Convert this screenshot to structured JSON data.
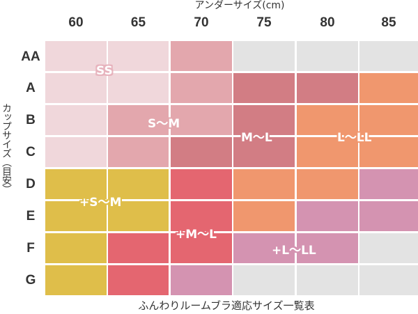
{
  "x_axis": {
    "title": "アンダーサイズ(cm)",
    "ticks": [
      "60",
      "65",
      "70",
      "75",
      "80",
      "85"
    ]
  },
  "y_axis": {
    "title": "カップサイズ（目安）",
    "ticks": [
      "AA",
      "A",
      "B",
      "C",
      "D",
      "E",
      "F",
      "G"
    ]
  },
  "caption": "ふんわりルームブラ適応サイズ一覧表",
  "colors": {
    "SS": "#f0d7db",
    "S~M": "#e3a7ad",
    "M~L": "#d27d84",
    "L~LL": "#f0976e",
    "+S~M": "#dfbe4a",
    "+M~L": "#e46670",
    "+L~LL": "#d493b1",
    "none": "#e3e3e3"
  },
  "bands": [
    {
      "id": "SS",
      "label": "SS"
    },
    {
      "id": "S~M",
      "label": "S〜M"
    },
    {
      "id": "M~L",
      "label": "M〜L"
    },
    {
      "id": "L~LL",
      "label": "L〜LL"
    },
    {
      "id": "+S~M",
      "label": "+S〜M"
    },
    {
      "id": "+M~L",
      "label": "+M〜L"
    },
    {
      "id": "+L~LL",
      "label": "+L〜LL"
    }
  ],
  "grid": [
    [
      "SS",
      "SS",
      "S~M",
      "none",
      "none",
      "none"
    ],
    [
      "SS",
      "SS",
      "S~M",
      "M~L",
      "M~L",
      "L~LL"
    ],
    [
      "SS",
      "S~M",
      "S~M",
      "M~L",
      "L~LL",
      "L~LL"
    ],
    [
      "SS",
      "S~M",
      "M~L",
      "M~L",
      "L~LL",
      "L~LL"
    ],
    [
      "+S~M",
      "+S~M",
      "+M~L",
      "L~LL",
      "L~LL",
      "+L~LL"
    ],
    [
      "+S~M",
      "+S~M",
      "+M~L",
      "L~LL",
      "+L~LL",
      "+L~LL"
    ],
    [
      "+S~M",
      "+M~L",
      "+M~L",
      "+L~LL",
      "+L~LL",
      "none"
    ],
    [
      "+S~M",
      "+M~L",
      "+L~LL",
      "none",
      "none",
      "none"
    ]
  ]
}
